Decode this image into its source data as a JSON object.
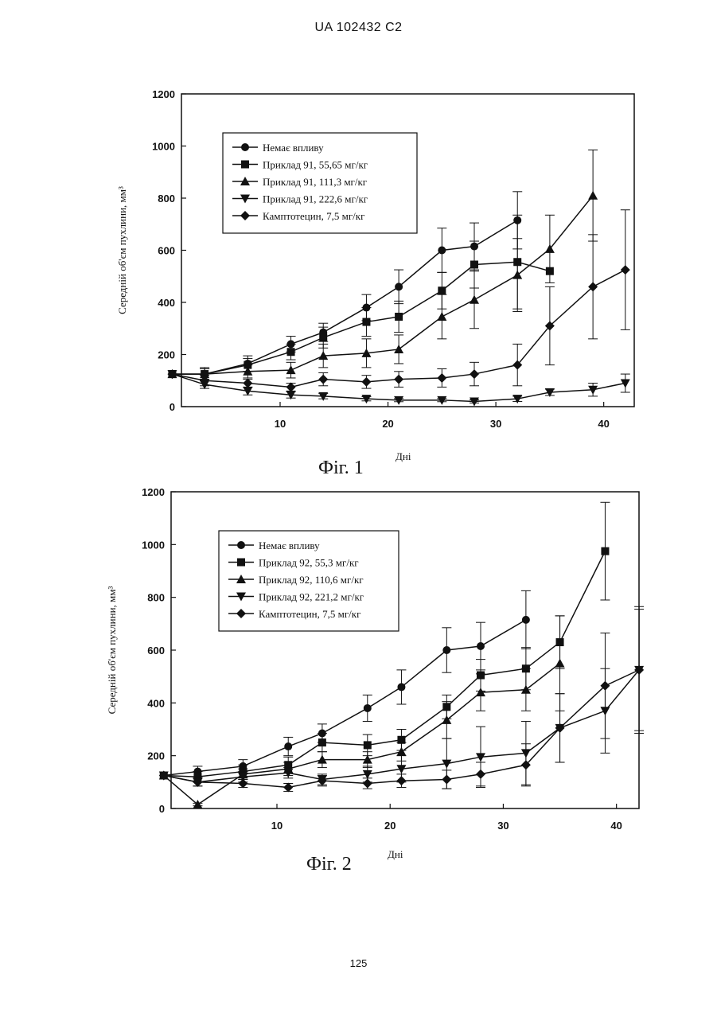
{
  "header": "UA   102432   C2",
  "page_number": "125",
  "chart_data": [
    {
      "type": "line",
      "fig_label": "Фіг. 1",
      "xlabel": "Дні",
      "ylabel": "Середній об'єм пухлини, мм³",
      "xlim": [
        0,
        42
      ],
      "ylim": [
        0,
        1200
      ],
      "xticks": [
        10,
        20,
        30,
        40
      ],
      "yticks": [
        0,
        200,
        400,
        600,
        800,
        1000,
        1200
      ],
      "legend_position": "top-left",
      "series": [
        {
          "name": "Немає впливу",
          "marker": "circle",
          "x": [
            0,
            3,
            7,
            11,
            14,
            18,
            21,
            25,
            28,
            32
          ],
          "y": [
            125,
            125,
            165,
            240,
            285,
            380,
            460,
            600,
            615,
            715
          ],
          "err": [
            0,
            20,
            30,
            30,
            35,
            50,
            65,
            85,
            90,
            110
          ]
        },
        {
          "name": "Приклад 91, 55,65 мг/кг",
          "marker": "square",
          "x": [
            0,
            3,
            7,
            11,
            14,
            18,
            21,
            25,
            28,
            32,
            35
          ],
          "y": [
            125,
            125,
            160,
            210,
            265,
            325,
            345,
            445,
            545,
            555,
            520
          ],
          "err": [
            0,
            25,
            25,
            30,
            40,
            55,
            60,
            70,
            90,
            180,
            0
          ]
        },
        {
          "name": "Приклад 91, 111,3 мг/кг",
          "marker": "triangle-up",
          "x": [
            0,
            3,
            7,
            11,
            14,
            18,
            21,
            25,
            28,
            32,
            35,
            39
          ],
          "y": [
            125,
            125,
            135,
            140,
            195,
            205,
            220,
            345,
            410,
            505,
            605,
            810
          ],
          "err": [
            0,
            20,
            25,
            30,
            45,
            55,
            55,
            85,
            110,
            140,
            130,
            175
          ]
        },
        {
          "name": "Приклад 91, 222,6 мг/кг",
          "marker": "triangle-down",
          "x": [
            0,
            3,
            7,
            11,
            14,
            18,
            21,
            25,
            28,
            32,
            35,
            39,
            42
          ],
          "y": [
            125,
            85,
            60,
            45,
            40,
            30,
            25,
            25,
            20,
            30,
            55,
            65,
            90
          ],
          "err": [
            0,
            15,
            15,
            12,
            10,
            8,
            6,
            6,
            6,
            10,
            12,
            25,
            35
          ]
        },
        {
          "name": "Камптотецин, 7,5 мг/кг",
          "marker": "diamond",
          "x": [
            0,
            3,
            7,
            11,
            14,
            18,
            21,
            25,
            28,
            32,
            35,
            39,
            42
          ],
          "y": [
            125,
            100,
            90,
            75,
            105,
            95,
            105,
            110,
            125,
            160,
            310,
            460,
            525
          ],
          "err": [
            0,
            20,
            15,
            15,
            25,
            25,
            30,
            35,
            45,
            80,
            150,
            200,
            230
          ]
        }
      ]
    },
    {
      "type": "line",
      "fig_label": "Фіг. 2",
      "xlabel": "Дні",
      "ylabel": "Середній об'єм пухлини, мм³",
      "xlim": [
        0,
        42
      ],
      "ylim": [
        0,
        1200
      ],
      "xticks": [
        10,
        20,
        30,
        40
      ],
      "yticks": [
        0,
        200,
        400,
        600,
        800,
        1000,
        1200
      ],
      "legend_position": "top-left",
      "series": [
        {
          "name": "Немає впливу",
          "marker": "circle",
          "x": [
            0,
            3,
            7,
            11,
            14,
            18,
            21,
            25,
            28,
            32
          ],
          "y": [
            125,
            140,
            160,
            235,
            285,
            380,
            460,
            600,
            615,
            715
          ],
          "err": [
            0,
            20,
            25,
            35,
            35,
            50,
            65,
            85,
            90,
            110
          ]
        },
        {
          "name": "Приклад 92, 55,3 мг/кг",
          "marker": "square",
          "x": [
            0,
            3,
            7,
            11,
            14,
            18,
            21,
            25,
            28,
            32,
            35,
            39
          ],
          "y": [
            125,
            120,
            140,
            165,
            250,
            240,
            260,
            385,
            505,
            530,
            630,
            975
          ],
          "err": [
            0,
            20,
            25,
            30,
            35,
            40,
            40,
            45,
            60,
            80,
            100,
            185
          ]
        },
        {
          "name": "Приклад 92, 110,6 мг/кг",
          "marker": "triangle-up",
          "x": [
            0,
            3,
            7,
            11,
            14,
            18,
            21,
            25,
            28,
            32,
            35
          ],
          "y": [
            125,
            15,
            130,
            150,
            185,
            185,
            215,
            335,
            440,
            450,
            550
          ],
          "err": [
            0,
            5,
            20,
            25,
            30,
            30,
            35,
            70,
            70,
            80,
            180
          ]
        },
        {
          "name": "Приклад 92, 221,2 мг/кг",
          "marker": "triangle-down",
          "x": [
            0,
            3,
            7,
            11,
            14,
            18,
            21,
            25,
            28,
            32,
            35,
            39,
            42
          ],
          "y": [
            125,
            100,
            120,
            135,
            110,
            130,
            150,
            170,
            195,
            210,
            305,
            370,
            525
          ],
          "err": [
            0,
            15,
            20,
            20,
            20,
            30,
            50,
            95,
            115,
            120,
            130,
            160,
            240
          ]
        },
        {
          "name": "Камптотецин, 7,5 мг/кг",
          "marker": "diamond",
          "x": [
            0,
            3,
            7,
            11,
            14,
            18,
            21,
            25,
            28,
            32,
            35,
            39,
            42
          ],
          "y": [
            125,
            100,
            95,
            80,
            105,
            95,
            105,
            110,
            130,
            165,
            305,
            465,
            525
          ],
          "err": [
            0,
            15,
            15,
            15,
            20,
            20,
            25,
            35,
            45,
            80,
            130,
            200,
            230
          ]
        }
      ]
    }
  ]
}
